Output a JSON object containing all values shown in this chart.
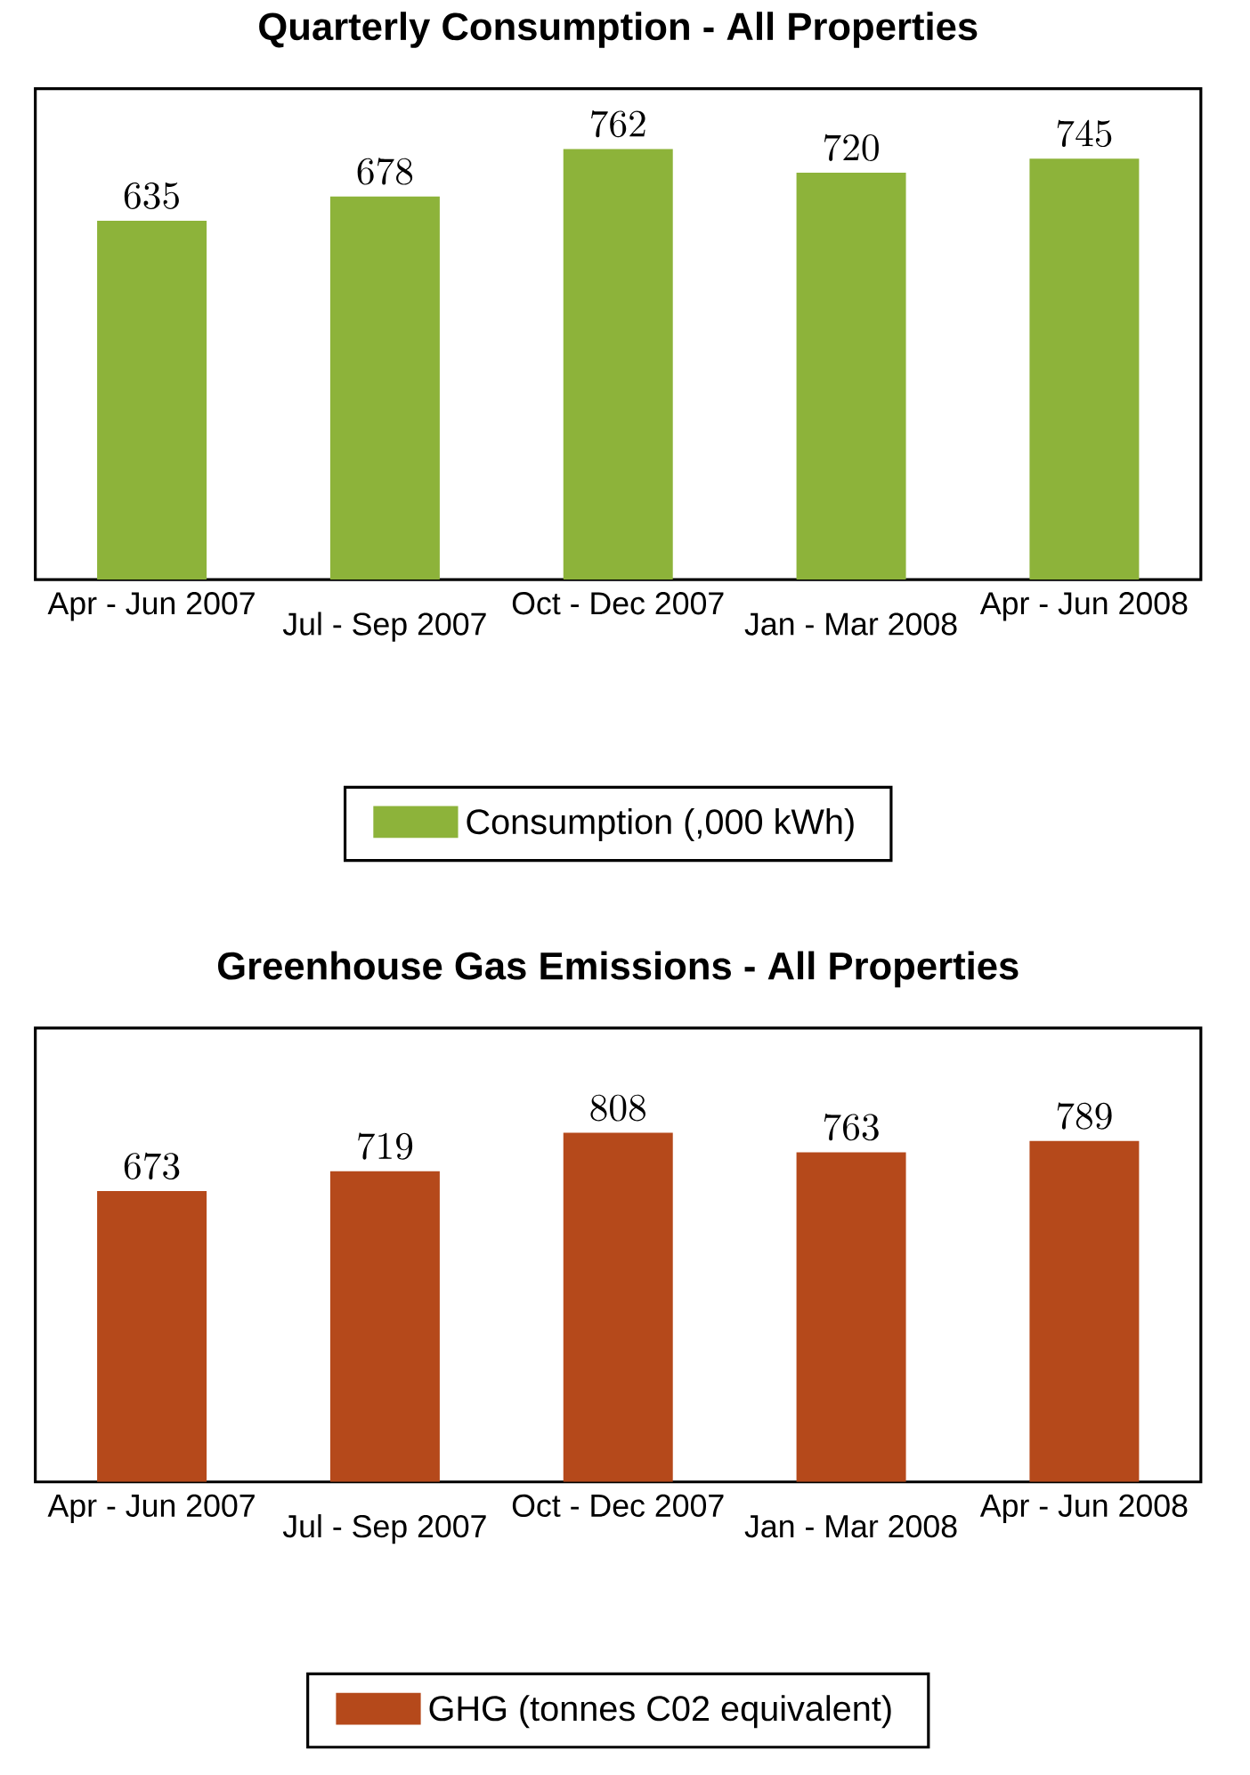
{
  "chart_data": [
    {
      "type": "bar",
      "title": "Quarterly Consumption - All Properties",
      "categories": [
        "Apr - Jun 2007",
        "Jul - Sep 2007",
        "Oct - Dec 2007",
        "Jan - Mar 2008",
        "Apr - Jun 2008"
      ],
      "series": [
        {
          "name": "Consumption (,000 kWh)",
          "color": "#8db33a",
          "values": [
            635,
            678,
            762,
            720,
            745
          ]
        }
      ],
      "data_labels": true,
      "legend": "bottom"
    },
    {
      "type": "bar",
      "title": "Greenhouse Gas Emissions - All Properties",
      "categories": [
        "Apr - Jun 2007",
        "Jul - Sep 2007",
        "Oct - Dec 2007",
        "Jan - Mar 2008",
        "Apr - Jun 2008"
      ],
      "series": [
        {
          "name": "GHG (tonnes C02 equivalent)",
          "color": "#b5491b",
          "values": [
            673,
            719,
            808,
            763,
            789
          ]
        }
      ],
      "data_labels": true,
      "legend": "bottom"
    }
  ]
}
